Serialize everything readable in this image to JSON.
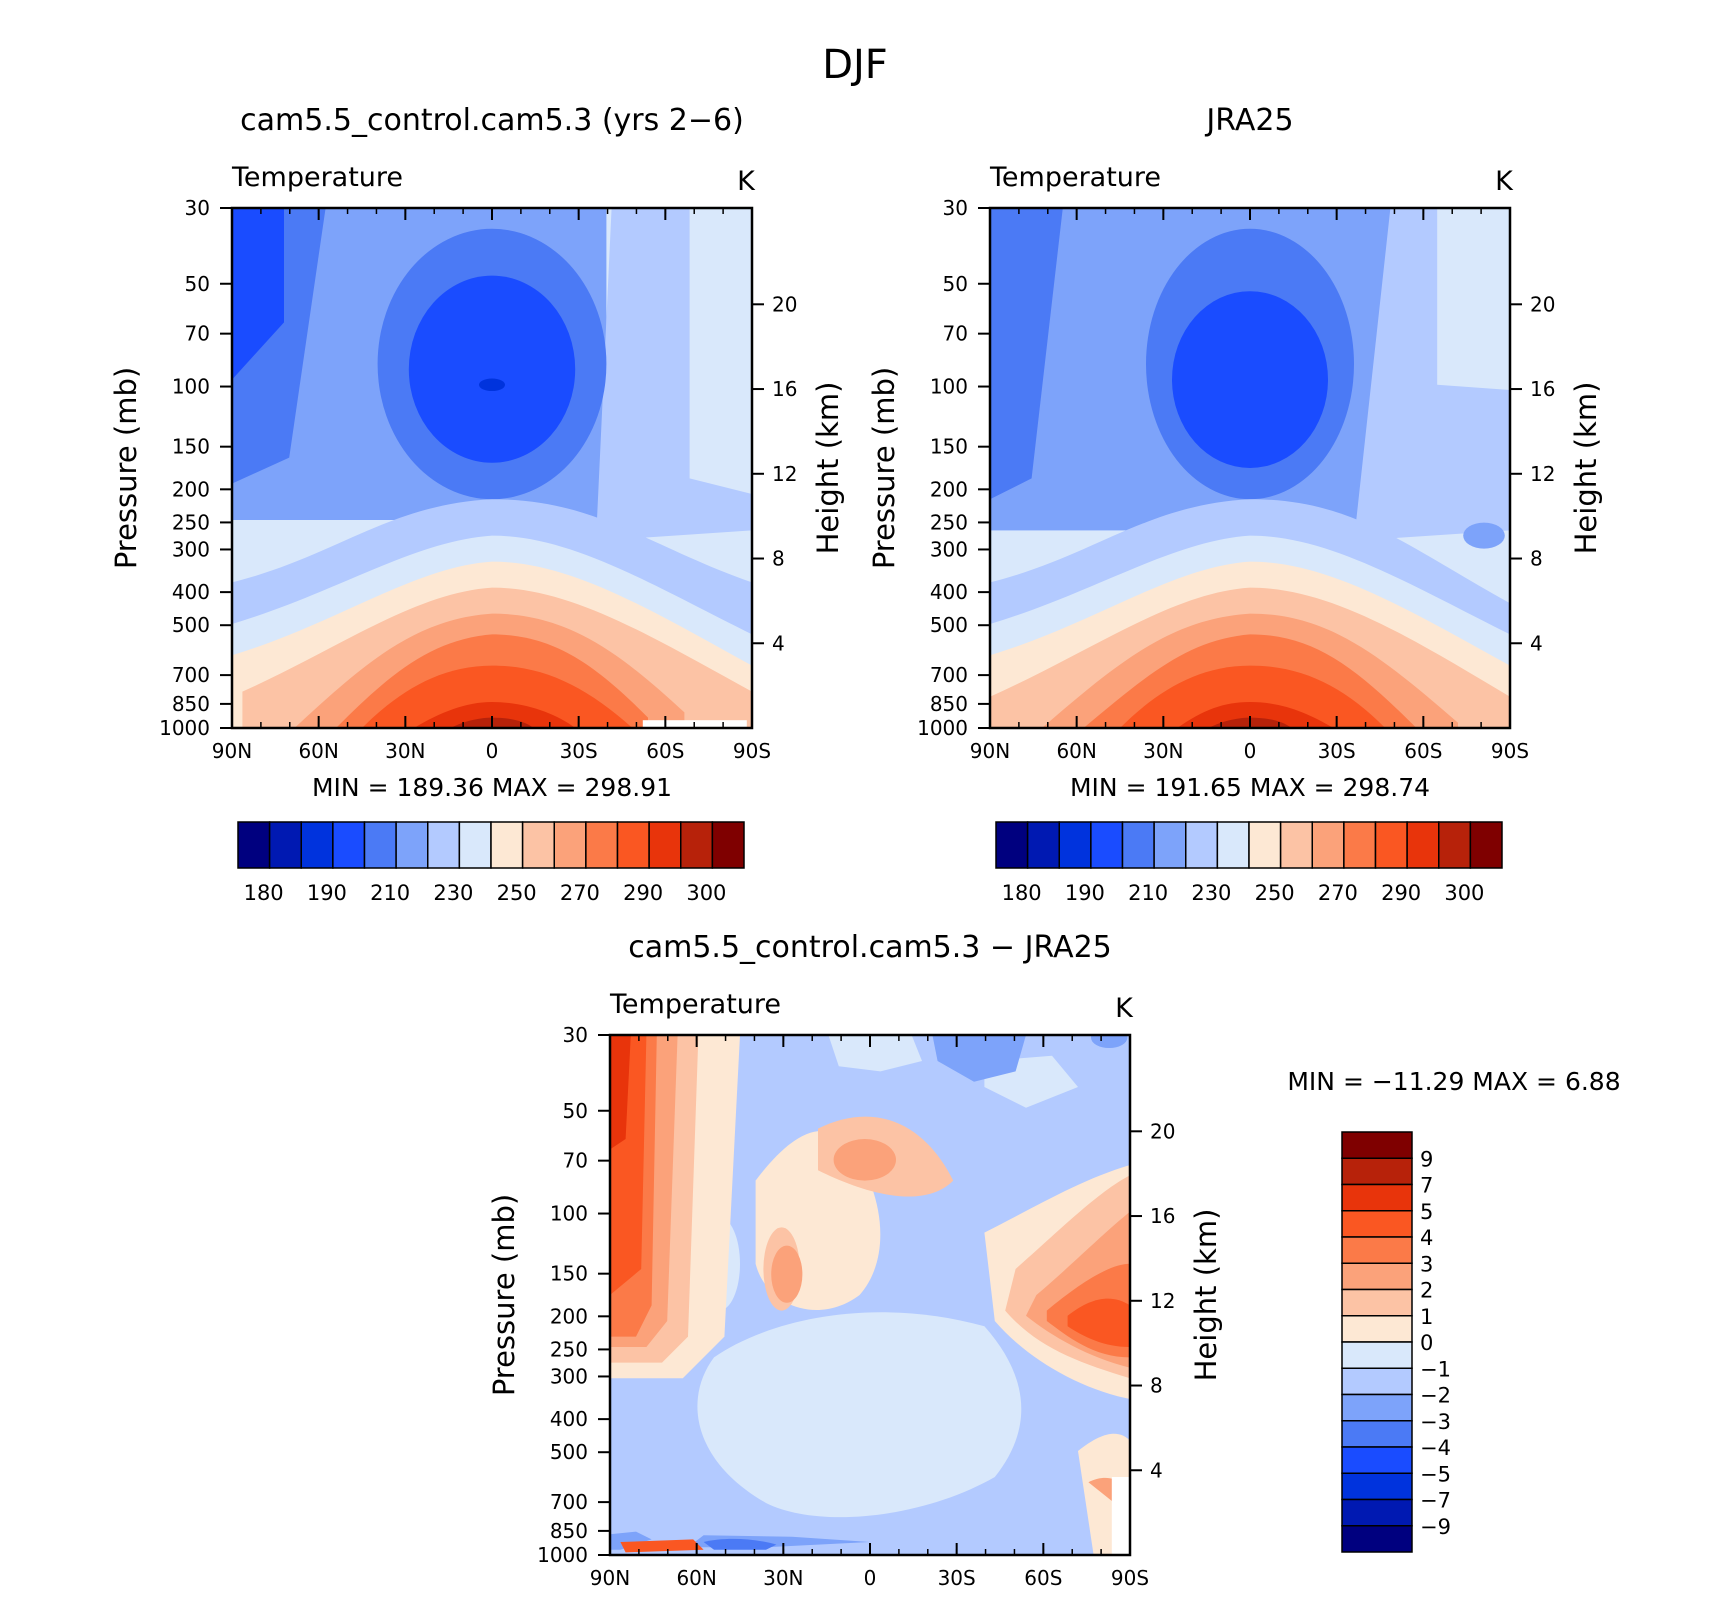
{
  "figure": {
    "title": "DJF"
  },
  "chart_data": [
    {
      "type": "heatmap",
      "title": "cam5.5_control.cam5.3 (yrs 2−6)",
      "variable": "Temperature",
      "units": "K",
      "ylabel": "Pressure (mb)",
      "ylabel_right": "Height (km)",
      "x_ticks": [
        "90N",
        "60N",
        "30N",
        "0",
        "30S",
        "60S",
        "90S"
      ],
      "y_ticks": [
        30,
        50,
        70,
        100,
        150,
        200,
        250,
        300,
        400,
        500,
        700,
        850,
        1000
      ],
      "y_ticks_right": [
        20,
        16,
        12,
        8,
        4
      ],
      "stats": "MIN =  189.36   MAX =  298.91",
      "color_levels": [
        180,
        190,
        210,
        230,
        250,
        270,
        290,
        300
      ],
      "colors": [
        "#00007f",
        "#0019b2",
        "#0033dd",
        "#1a4cff",
        "#4b7af5",
        "#7da3fa",
        "#b3caff",
        "#d9e8fb",
        "#fde8d4",
        "#fcc3a5",
        "#fba27a",
        "#fb7a48",
        "#fa5722",
        "#e8340b",
        "#b7220a",
        "#7f0000"
      ]
    },
    {
      "type": "heatmap",
      "title": "JRA25",
      "variable": "Temperature",
      "units": "K",
      "ylabel": "Pressure (mb)",
      "ylabel_right": "Height (km)",
      "x_ticks": [
        "90N",
        "60N",
        "30N",
        "0",
        "30S",
        "60S",
        "90S"
      ],
      "y_ticks": [
        30,
        50,
        70,
        100,
        150,
        200,
        250,
        300,
        400,
        500,
        700,
        850,
        1000
      ],
      "y_ticks_right": [
        20,
        16,
        12,
        8,
        4
      ],
      "stats": "MIN =  191.65   MAX =  298.74",
      "color_levels": [
        180,
        190,
        210,
        230,
        250,
        270,
        290,
        300
      ],
      "colors": [
        "#00007f",
        "#0019b2",
        "#0033dd",
        "#1a4cff",
        "#4b7af5",
        "#7da3fa",
        "#b3caff",
        "#d9e8fb",
        "#fde8d4",
        "#fcc3a5",
        "#fba27a",
        "#fb7a48",
        "#fa5722",
        "#e8340b",
        "#b7220a",
        "#7f0000"
      ]
    },
    {
      "type": "heatmap",
      "title": "cam5.5_control.cam5.3 − JRA25",
      "variable": "Temperature",
      "units": "K",
      "ylabel": "Pressure (mb)",
      "ylabel_right": "Height (km)",
      "x_ticks": [
        "90N",
        "60N",
        "30N",
        "0",
        "30S",
        "60S",
        "90S"
      ],
      "y_ticks": [
        30,
        50,
        70,
        100,
        150,
        200,
        250,
        300,
        400,
        500,
        700,
        850,
        1000
      ],
      "y_ticks_right": [
        20,
        16,
        12,
        8,
        4
      ],
      "stats": "MIN = −11.29    MAX =     6.88",
      "color_levels": [
        "9",
        "7",
        "5",
        "4",
        "3",
        "2",
        "1",
        "0",
        "−1",
        "−2",
        "−3",
        "−4",
        "−5",
        "−7",
        "−9"
      ],
      "colors": [
        "#7f0000",
        "#b7220a",
        "#e8340b",
        "#fa5722",
        "#fb7a48",
        "#fba27a",
        "#fcc3a5",
        "#fde8d4",
        "#d9e8fb",
        "#b3caff",
        "#7da3fa",
        "#4b7af5",
        "#1a4cff",
        "#0033dd",
        "#0019b2",
        "#00007f"
      ]
    }
  ]
}
